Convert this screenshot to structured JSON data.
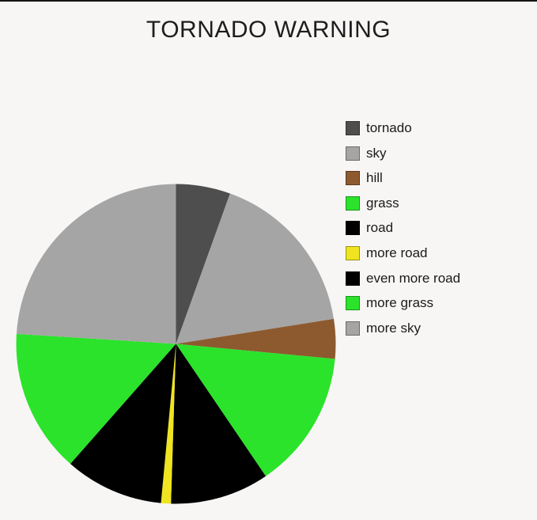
{
  "title": "TORNADO WARNING",
  "colors": {
    "background": "#f7f6f5",
    "top_border": "#141414",
    "title_text": "#1d1d1d",
    "legend_text": "#1a1a1a"
  },
  "chart_data": {
    "type": "pie",
    "title": "TORNADO WARNING",
    "legend_position": "right",
    "start_angle_deg": 0,
    "direction": "clockwise",
    "slices": [
      {
        "label": "tornado",
        "value_pct": 5.5,
        "color": "#4e4e4e"
      },
      {
        "label": "sky",
        "value_pct": 17,
        "color": "#a5a5a5"
      },
      {
        "label": "hill",
        "value_pct": 4,
        "color": "#8d5a2f"
      },
      {
        "label": "grass",
        "value_pct": 14,
        "color": "#2be32b"
      },
      {
        "label": "road",
        "value_pct": 10,
        "color": "#000000"
      },
      {
        "label": "more road",
        "value_pct": 1,
        "color": "#efe41f"
      },
      {
        "label": "even more road",
        "value_pct": 10,
        "color": "#000000"
      },
      {
        "label": "more grass",
        "value_pct": 14.5,
        "color": "#2be32b"
      },
      {
        "label": "more sky",
        "value_pct": 24,
        "color": "#a5a5a5"
      }
    ]
  }
}
